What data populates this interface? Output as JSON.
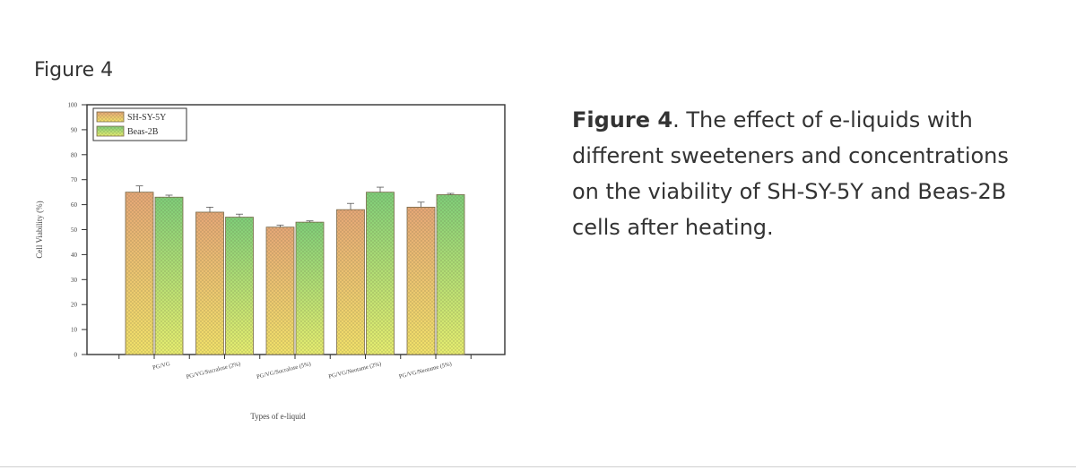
{
  "figure_heading": "Figure 4",
  "caption": {
    "label": "Figure 4",
    "text": ". The effect of e-liquids with different sweeteners and concentrations on the viability of SH-SY-5Y and Beas-2B cells after heating."
  },
  "chart_data": {
    "type": "bar",
    "title": "",
    "xlabel": "Types of e-liquid",
    "ylabel": "Cell Viability (%)",
    "ylim": [
      0,
      100
    ],
    "yticks": [
      0,
      10,
      20,
      30,
      40,
      50,
      60,
      70,
      80,
      90,
      100
    ],
    "grid": false,
    "legend_position": "top-left",
    "categories": [
      "PG/VG",
      "PG/VG/Sucralose (2%)",
      "PG/VG/Sucralose (5%)",
      "PG/VG/Neotame (2%)",
      "PG/VG/Neotame (5%)"
    ],
    "series": [
      {
        "name": "SH-SY-5Y",
        "values": [
          65,
          57,
          51,
          58,
          59
        ],
        "errors": [
          2.5,
          2,
          0.8,
          2.5,
          2
        ],
        "color_top": "#e8a878",
        "color_bottom": "#f4e46a"
      },
      {
        "name": "Beas-2B",
        "values": [
          63,
          55,
          53,
          65,
          64
        ],
        "errors": [
          0.8,
          1.2,
          0.5,
          2,
          0.5
        ],
        "color_top": "#7fd07a",
        "color_bottom": "#eaf070"
      }
    ]
  }
}
